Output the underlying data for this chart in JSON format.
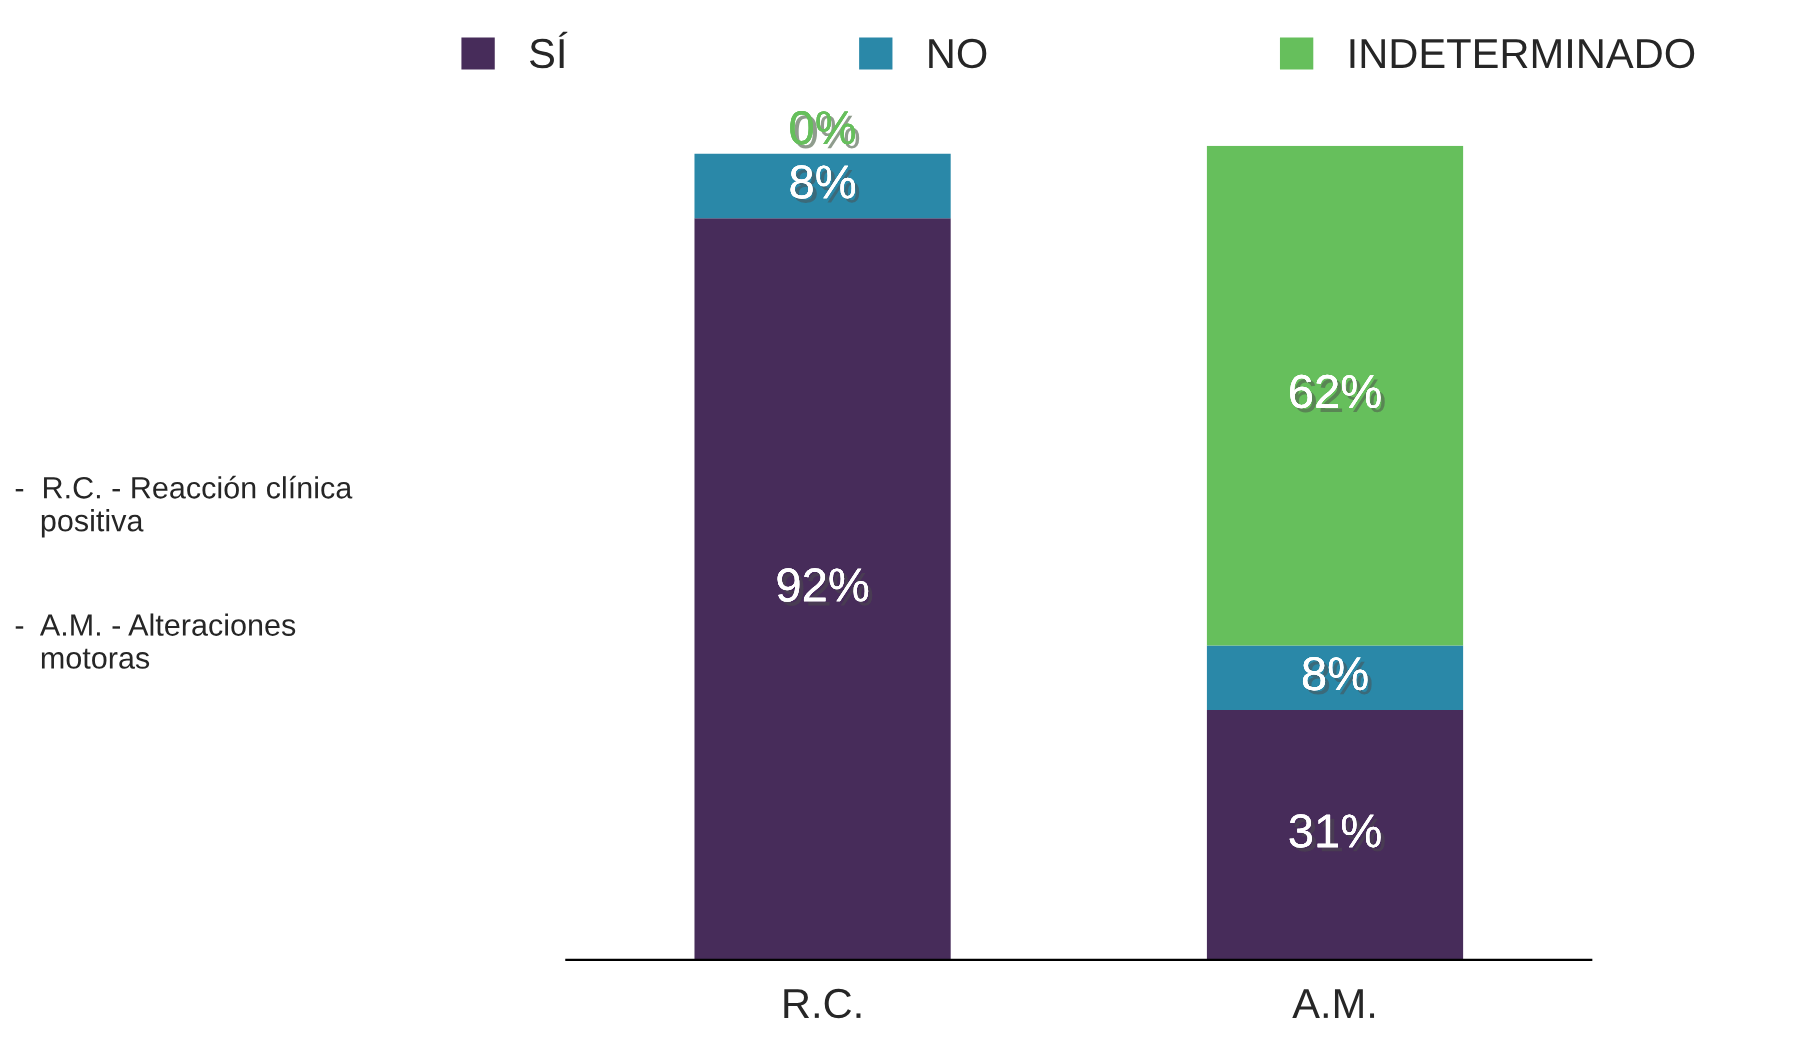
{
  "chart_data": {
    "type": "bar",
    "stacked": true,
    "legend": "top",
    "categories": [
      "R.C.",
      "A.M."
    ],
    "series": [
      {
        "name": "SÍ",
        "color": "#472c5a",
        "values": [
          92,
          31
        ],
        "value_labels": [
          "92%",
          "31%"
        ]
      },
      {
        "name": "NO",
        "color": "#2a88a8",
        "values": [
          8,
          8
        ],
        "value_labels": [
          "8%",
          "8%"
        ]
      },
      {
        "name": "INDETERMINADO",
        "color": "#66bf5c",
        "values": [
          0,
          62
        ],
        "value_labels": [
          "0%",
          "62%"
        ]
      }
    ],
    "annotations": [
      "-  R.C. - Reacción clínica\n   positiva",
      "-  A.M. - Alteraciones\n   motoras"
    ]
  }
}
